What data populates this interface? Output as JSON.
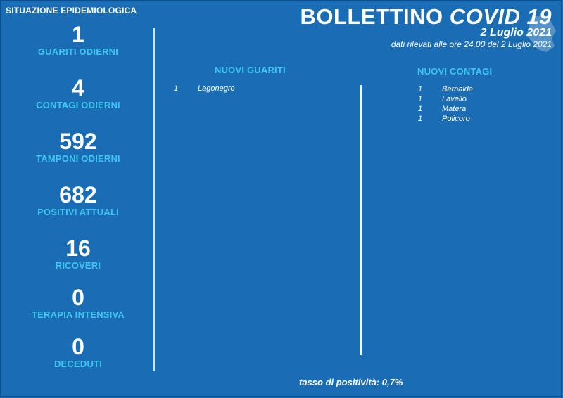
{
  "header": {
    "section_title": "SITUAZIONE EPIDEMIOLOGICA",
    "title_main": "BOLLETTINO",
    "title_accent": "COVID 19",
    "date": "2 Luglio 2021",
    "subdate": "dati rilevati alle ore 24,00 del 2 Luglio 2021"
  },
  "stats": [
    {
      "value": "1",
      "label": "GUARITI ODIERNI"
    },
    {
      "value": "4",
      "label": "CONTAGI ODIERNI"
    },
    {
      "value": "592",
      "label": "TAMPONI ODIERNI"
    },
    {
      "value": "682",
      "label": "POSITIVI ATTUALI"
    },
    {
      "value": "16",
      "label": "RICOVERI"
    },
    {
      "value": "0",
      "label": "TERAPIA INTENSIVA"
    },
    {
      "value": "0",
      "label": "DECEDUTI"
    }
  ],
  "guariti": {
    "heading": "NUOVI GUARITI",
    "rows": [
      {
        "count": "1",
        "city": "Lagonegro"
      }
    ]
  },
  "contagi": {
    "heading": "NUOVI CONTAGI",
    "rows": [
      {
        "count": "1",
        "city": "Bernalda"
      },
      {
        "count": "1",
        "city": "Lavello"
      },
      {
        "count": "1",
        "city": "Matera"
      },
      {
        "count": "1",
        "city": "Policoro"
      }
    ]
  },
  "footer": {
    "tasso": "tasso di positività: 0,7%"
  },
  "colors": {
    "background": "#1a6db5",
    "accent": "#3fc6f2",
    "text": "#ffffff"
  },
  "icons": {
    "region_map": "basilicata-map-icon"
  }
}
